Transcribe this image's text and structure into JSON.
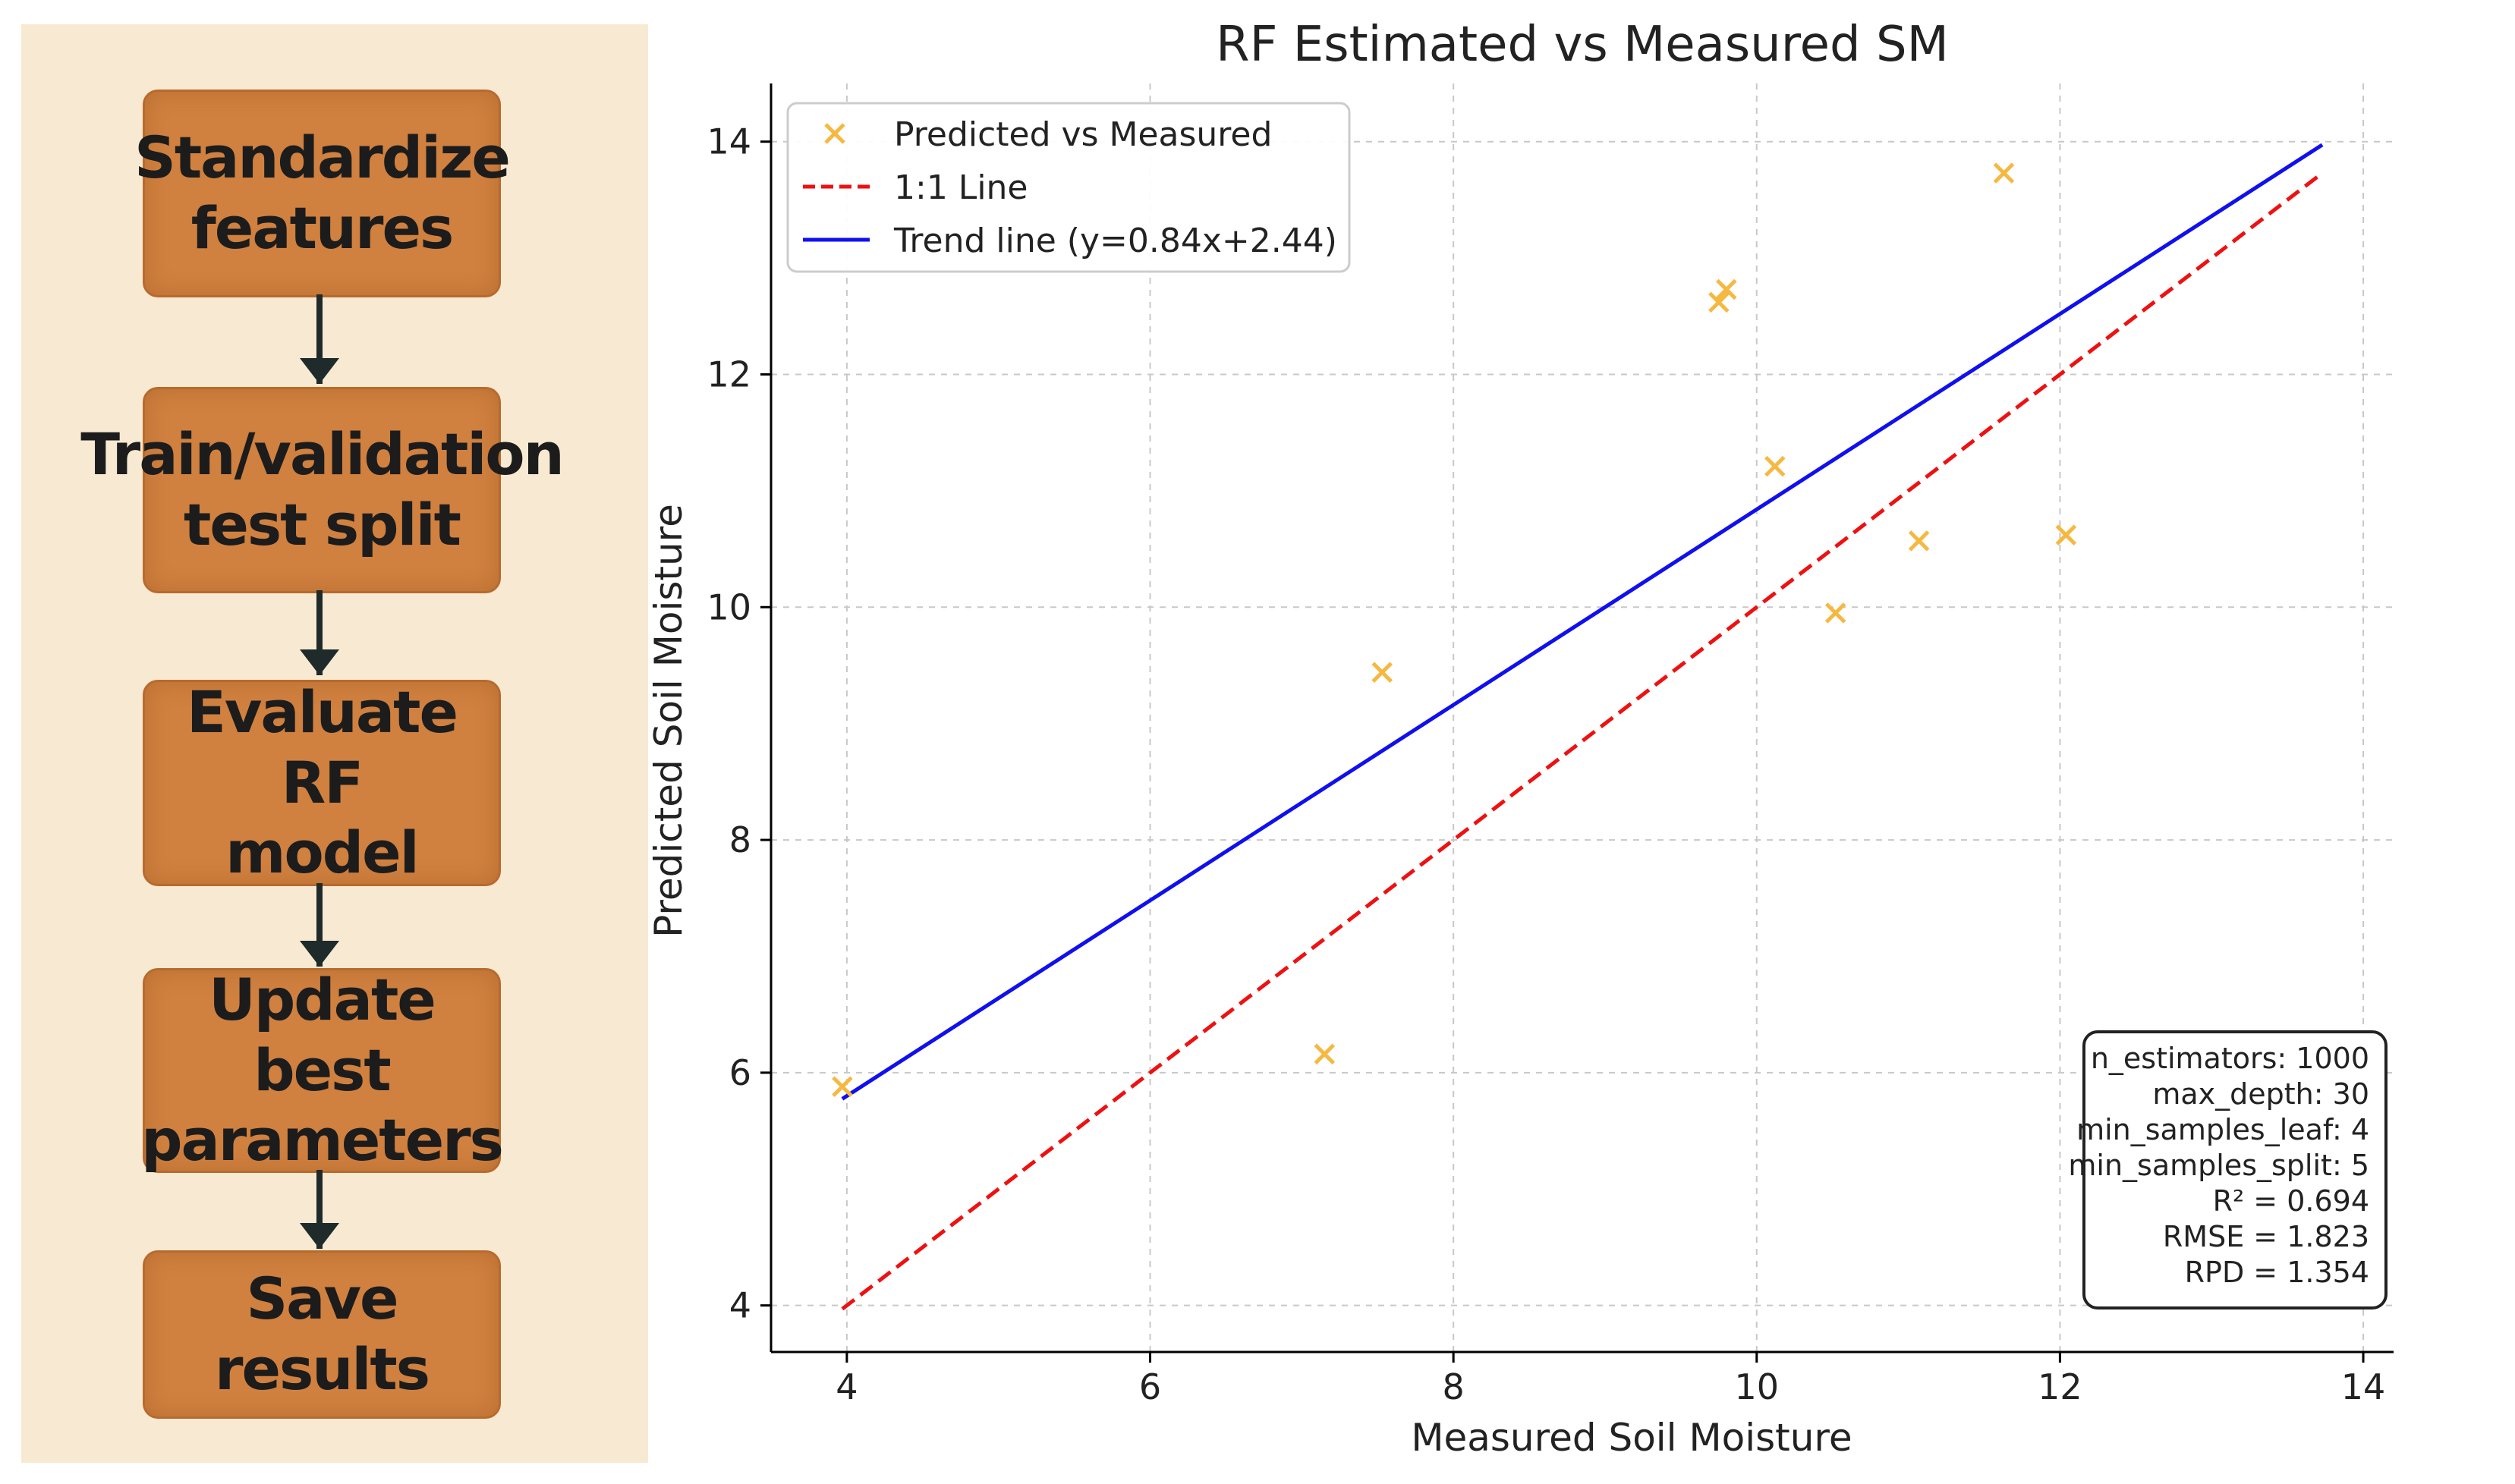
{
  "flowchart": {
    "steps": [
      {
        "label": "Standardize\nfeatures"
      },
      {
        "label": "Train/validation\ntest split"
      },
      {
        "label": "Evaluate RF\nmodel"
      },
      {
        "label": "Update best\nparameters"
      },
      {
        "label": "Save results"
      }
    ]
  },
  "chart_data": {
    "type": "scatter",
    "title": "RF Estimated vs Measured SM",
    "xlabel": "Measured Soil Moisture",
    "ylabel": "Predicted Soil Moisture",
    "xlim": [
      3.5,
      14.2
    ],
    "ylim": [
      3.6,
      14.5
    ],
    "xticks": [
      4,
      6,
      8,
      10,
      12,
      14
    ],
    "yticks": [
      4,
      6,
      8,
      10,
      12,
      14
    ],
    "grid": true,
    "legend_position": "top-left",
    "series": [
      {
        "name": "Predicted vs Measured",
        "kind": "scatter",
        "marker": "x",
        "color": "#f5b942",
        "x": [
          3.97,
          7.15,
          7.53,
          9.75,
          9.8,
          10.12,
          10.52,
          11.07,
          11.63,
          12.04
        ],
        "y": [
          5.88,
          6.16,
          9.44,
          12.62,
          12.73,
          11.21,
          9.95,
          10.57,
          13.73,
          10.62
        ]
      },
      {
        "name": "1:1 Line",
        "kind": "line",
        "style": "dashed",
        "color": "#ee1111",
        "x": [
          3.97,
          13.73
        ],
        "y": [
          3.97,
          13.73
        ]
      },
      {
        "name": "Trend line (y=0.84x+2.44)",
        "kind": "line",
        "style": "solid",
        "color": "#1010ee",
        "x": [
          3.97,
          13.73
        ],
        "y": [
          5.775,
          13.973
        ]
      }
    ],
    "annotation_box": {
      "position": "bottom-right",
      "lines": [
        "n_estimators: 1000",
        "max_depth: 30",
        "min_samples_leaf: 4",
        "min_samples_split: 5",
        "R² = 0.694",
        "RMSE = 1.823",
        "RPD = 1.354"
      ]
    }
  }
}
